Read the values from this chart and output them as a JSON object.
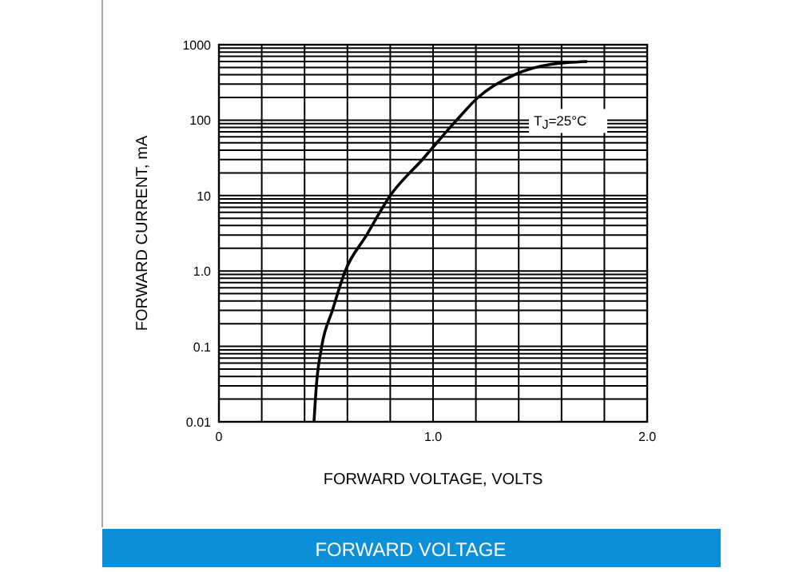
{
  "chart_data": {
    "type": "line",
    "title": "FORWARD VOLTAGE",
    "xlabel": "FORWARD VOLTAGE, VOLTS",
    "ylabel": "FORWARD CURRENT, mA",
    "annotations": [
      "T$_{J}$=25°C"
    ],
    "log": "y",
    "grid": true,
    "marker": "none",
    "line_style": "solid",
    "x": [
      0.444,
      0.455,
      0.48,
      0.53,
      0.59,
      0.69,
      0.8,
      0.95,
      1.11,
      1.21,
      1.38,
      1.55,
      1.72
    ],
    "series": [
      {
        "color": "#000000",
        "values": [
          0.01,
          0.03,
          0.1,
          0.3,
          1,
          3,
          10,
          30,
          100,
          200,
          400,
          550,
          600
        ]
      }
    ],
    "xlim": [
      0,
      2
    ],
    "xticks": [
      {
        "value": 0,
        "label": "0"
      },
      {
        "value": 0.2,
        "label": null
      },
      {
        "value": 0.4,
        "label": null
      },
      {
        "value": 0.6,
        "label": null
      },
      {
        "value": 0.8,
        "label": null
      },
      {
        "value": 1,
        "label": "1.0"
      },
      {
        "value": 1.2,
        "label": null
      },
      {
        "value": 1.4,
        "label": null
      },
      {
        "value": 1.6,
        "label": null
      },
      {
        "value": 1.8,
        "label": null
      },
      {
        "value": 2,
        "label": "2.0"
      }
    ],
    "ylim": [
      0.01,
      1000
    ],
    "yticks": [
      0.01,
      {
        "value": 0.02,
        "label": null
      },
      {
        "value": 0.03,
        "label": null
      },
      {
        "value": 0.04,
        "label": null
      },
      {
        "value": 0.05,
        "label": null
      },
      {
        "value": 0.06,
        "label": null
      },
      {
        "value": 0.07,
        "label": null
      },
      {
        "value": 0.08,
        "label": null
      },
      {
        "value": 0.09,
        "label": null
      },
      0.1,
      {
        "value": 0.2,
        "label": null
      },
      {
        "value": 0.3,
        "label": null
      },
      {
        "value": 0.4,
        "label": null
      },
      {
        "value": 0.5,
        "label": null
      },
      {
        "value": 0.6,
        "label": null
      },
      {
        "value": 0.7,
        "label": null
      },
      {
        "value": 0.8,
        "label": null
      },
      {
        "value": 0.9,
        "label": null
      },
      {
        "value": 1,
        "label": "1.0"
      },
      {
        "value": 2,
        "label": null
      },
      {
        "value": 3,
        "label": null
      },
      {
        "value": 4,
        "label": null
      },
      {
        "value": 5,
        "label": null
      },
      {
        "value": 6,
        "label": null
      },
      {
        "value": 7,
        "label": null
      },
      {
        "value": 8,
        "label": null
      },
      {
        "value": 9,
        "label": null
      },
      10,
      {
        "value": 20,
        "label": null
      },
      {
        "value": 30,
        "label": null
      },
      {
        "value": 40,
        "label": null
      },
      {
        "value": 50,
        "label": null
      },
      {
        "value": 60,
        "label": null
      },
      {
        "value": 70,
        "label": null
      },
      {
        "value": 80,
        "label": null
      },
      {
        "value": 90,
        "label": null
      },
      100,
      {
        "value": 200,
        "label": null
      },
      {
        "value": 300,
        "label": null
      },
      {
        "value": 400,
        "label": null
      },
      {
        "value": 500,
        "label": null
      },
      {
        "value": 600,
        "label": null
      },
      {
        "value": 700,
        "label": null
      },
      {
        "value": 800,
        "label": null
      },
      {
        "value": 900,
        "label": null
      },
      1000
    ]
  }
}
